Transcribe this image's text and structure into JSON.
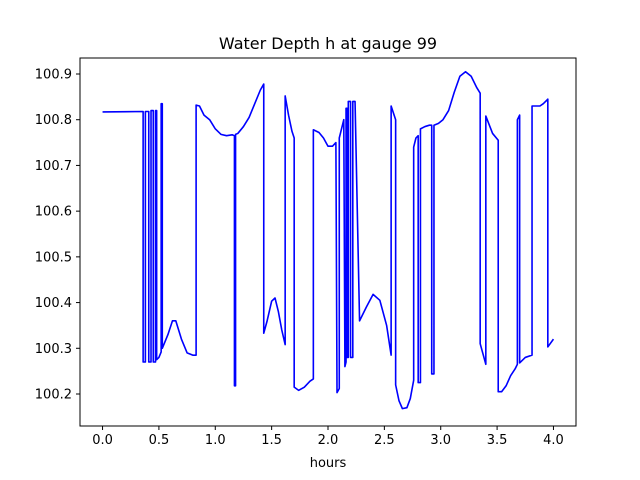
{
  "chart_data": {
    "type": "line",
    "title": "Water Depth h at gauge 99",
    "xlabel": "hours",
    "ylabel": "",
    "xlim": [
      -0.2,
      4.2
    ],
    "ylim": [
      100.13,
      100.935
    ],
    "xticks": [
      0.0,
      0.5,
      1.0,
      1.5,
      2.0,
      2.5,
      3.0,
      3.5,
      4.0
    ],
    "xtick_labels": [
      "0.0",
      "0.5",
      "1.0",
      "1.5",
      "2.0",
      "2.5",
      "3.0",
      "3.5",
      "4.0"
    ],
    "yticks": [
      100.2,
      100.3,
      100.4,
      100.5,
      100.6,
      100.7,
      100.8,
      100.9
    ],
    "ytick_labels": [
      "100.2",
      "100.3",
      "100.4",
      "100.5",
      "100.6",
      "100.7",
      "100.8",
      "100.9"
    ],
    "grid": false,
    "series": [
      {
        "name": "",
        "color": "#0000ff",
        "x": [
          0.0,
          0.36,
          0.36,
          0.38,
          0.38,
          0.41,
          0.41,
          0.43,
          0.43,
          0.45,
          0.45,
          0.47,
          0.47,
          0.48,
          0.48,
          0.5,
          0.52,
          0.52,
          0.53,
          0.53,
          0.58,
          0.62,
          0.65,
          0.7,
          0.75,
          0.8,
          0.83,
          0.83,
          0.86,
          0.9,
          0.95,
          1.0,
          1.05,
          1.1,
          1.15,
          1.17,
          1.17,
          1.18,
          1.18,
          1.2,
          1.25,
          1.3,
          1.35,
          1.4,
          1.43,
          1.43,
          1.46,
          1.5,
          1.53,
          1.56,
          1.59,
          1.62,
          1.62,
          1.65,
          1.68,
          1.7,
          1.7,
          1.74,
          1.79,
          1.84,
          1.87,
          1.87,
          1.92,
          1.96,
          2.0,
          2.04,
          2.07,
          2.08,
          2.08,
          2.1,
          2.1,
          2.13,
          2.14,
          2.15,
          2.16,
          2.16,
          2.17,
          2.17,
          2.18,
          2.18,
          2.2,
          2.2,
          2.22,
          2.22,
          2.24,
          2.28,
          2.34,
          2.4,
          2.46,
          2.52,
          2.56,
          2.56,
          2.6,
          2.6,
          2.63,
          2.66,
          2.7,
          2.73,
          2.76,
          2.76,
          2.78,
          2.8,
          2.8,
          2.82,
          2.82,
          2.86,
          2.9,
          2.92,
          2.92,
          2.94,
          2.94,
          2.98,
          3.02,
          3.07,
          3.12,
          3.17,
          3.22,
          3.27,
          3.32,
          3.35,
          3.35,
          3.4,
          3.4,
          3.46,
          3.51,
          3.51,
          3.54,
          3.58,
          3.62,
          3.66,
          3.68,
          3.68,
          3.7,
          3.7,
          3.75,
          3.81,
          3.81,
          3.88,
          3.91,
          3.95,
          3.95,
          4.0
        ],
        "y": [
          100.817,
          100.818,
          100.27,
          100.27,
          100.818,
          100.818,
          100.27,
          100.27,
          100.82,
          100.82,
          100.27,
          100.27,
          100.82,
          100.82,
          100.275,
          100.28,
          100.292,
          100.835,
          100.835,
          100.3,
          100.33,
          100.36,
          100.36,
          100.32,
          100.29,
          100.285,
          100.285,
          100.832,
          100.83,
          100.81,
          100.8,
          100.78,
          100.768,
          100.765,
          100.767,
          100.765,
          100.218,
          100.218,
          100.768,
          100.77,
          100.785,
          100.805,
          100.835,
          100.865,
          100.878,
          100.333,
          100.36,
          100.403,
          100.41,
          100.38,
          100.34,
          100.308,
          100.852,
          100.81,
          100.775,
          100.76,
          100.215,
          100.208,
          100.215,
          100.228,
          100.233,
          100.778,
          100.772,
          100.76,
          100.742,
          100.742,
          100.75,
          100.203,
          100.203,
          100.212,
          100.76,
          100.79,
          100.8,
          100.26,
          100.27,
          100.825,
          100.825,
          100.28,
          100.28,
          100.84,
          100.84,
          100.28,
          100.28,
          100.84,
          100.84,
          100.36,
          100.39,
          100.418,
          100.405,
          100.35,
          100.285,
          100.83,
          100.8,
          100.22,
          100.185,
          100.168,
          100.17,
          100.19,
          100.23,
          100.74,
          100.76,
          100.765,
          100.225,
          100.225,
          100.78,
          100.785,
          100.788,
          100.788,
          100.244,
          100.244,
          100.788,
          100.792,
          100.8,
          100.82,
          100.86,
          100.895,
          100.905,
          100.895,
          100.87,
          100.858,
          100.31,
          100.265,
          100.808,
          100.77,
          100.755,
          100.205,
          100.205,
          100.218,
          100.24,
          100.255,
          100.265,
          100.8,
          100.81,
          100.268,
          100.28,
          100.285,
          100.83,
          100.83,
          100.835,
          100.845,
          100.303,
          100.32
        ]
      }
    ]
  }
}
